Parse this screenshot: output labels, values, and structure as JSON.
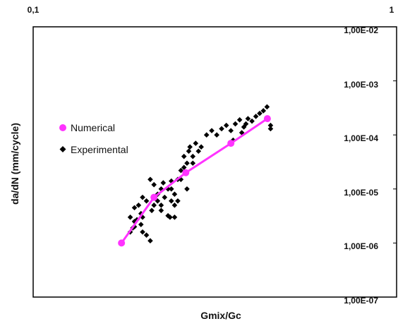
{
  "chart_data": {
    "type": "scatter",
    "title": "",
    "xlabel": "Gmix/Gc",
    "ylabel": "da/dN (mm/cycle)",
    "x_scale": "log",
    "y_scale": "log",
    "xlim": [
      0.1,
      1
    ],
    "ylim": [
      1e-07,
      0.01
    ],
    "x_tick_labels": [
      "0,1",
      "1"
    ],
    "y_tick_labels": [
      "1,00E-02",
      "1,00E-03",
      "1,00E-04",
      "1,00E-05",
      "1,00E-06",
      "1,00E-07"
    ],
    "y_tick_values": [
      0.01,
      0.001,
      0.0001,
      1e-05,
      1e-06,
      1e-07
    ],
    "grid": false,
    "legend": "left",
    "series": [
      {
        "name": "Numerical",
        "marker": "circle",
        "line": true,
        "color": "#ff33ff",
        "x": [
          0.175,
          0.215,
          0.263,
          0.35,
          0.441
        ],
        "y": [
          1e-06,
          7e-06,
          2e-05,
          7e-05,
          0.0002
        ]
      },
      {
        "name": "Experimental",
        "marker": "diamond",
        "line": false,
        "color": "#000000",
        "x": [
          0.19,
          0.185,
          0.185,
          0.19,
          0.195,
          0.2,
          0.198,
          0.2,
          0.205,
          0.21,
          0.212,
          0.205,
          0.2,
          0.198,
          0.19,
          0.193,
          0.188,
          0.215,
          0.22,
          0.22,
          0.225,
          0.23,
          0.225,
          0.21,
          0.215,
          0.24,
          0.235,
          0.238,
          0.245,
          0.24,
          0.245,
          0.25,
          0.255,
          0.245,
          0.24,
          0.235,
          0.228,
          0.225,
          0.26,
          0.265,
          0.26,
          0.268,
          0.27,
          0.255,
          0.265,
          0.25,
          0.275,
          0.28,
          0.285,
          0.275,
          0.29,
          0.3,
          0.31,
          0.32,
          0.33,
          0.34,
          0.35,
          0.36,
          0.37,
          0.38,
          0.385,
          0.39,
          0.4,
          0.41,
          0.42,
          0.43,
          0.44,
          0.45,
          0.45,
          0.355,
          0.375
        ],
        "y": [
          2e-06,
          1.6e-06,
          3e-06,
          4.5e-06,
          5e-06,
          3e-06,
          2.2e-06,
          1.6e-06,
          1.4e-06,
          1.1e-06,
          4e-06,
          6e-06,
          7e-06,
          3.5e-06,
          2.5e-06,
          2.7e-06,
          1.9e-06,
          5e-06,
          6e-06,
          8e-06,
          4e-06,
          7e-06,
          1e-05,
          1.5e-05,
          1.2e-05,
          1.4e-05,
          3.2e-06,
          3e-06,
          5e-06,
          1e-05,
          8e-06,
          1.5e-05,
          2.2e-05,
          3e-06,
          6e-06,
          1e-05,
          1.3e-05,
          5e-06,
          2.5e-05,
          3e-05,
          4e-05,
          5e-05,
          6e-05,
          1.5e-05,
          1e-05,
          6e-06,
          4e-05,
          7e-05,
          5e-05,
          3e-05,
          6e-05,
          0.0001,
          0.00012,
          0.0001,
          0.00013,
          0.00015,
          0.00012,
          0.00016,
          0.00019,
          0.00014,
          0.00016,
          0.0002,
          0.00018,
          0.00022,
          0.00025,
          0.00028,
          0.00033,
          0.00015,
          0.00013,
          8e-05,
          0.00011
        ]
      }
    ]
  }
}
